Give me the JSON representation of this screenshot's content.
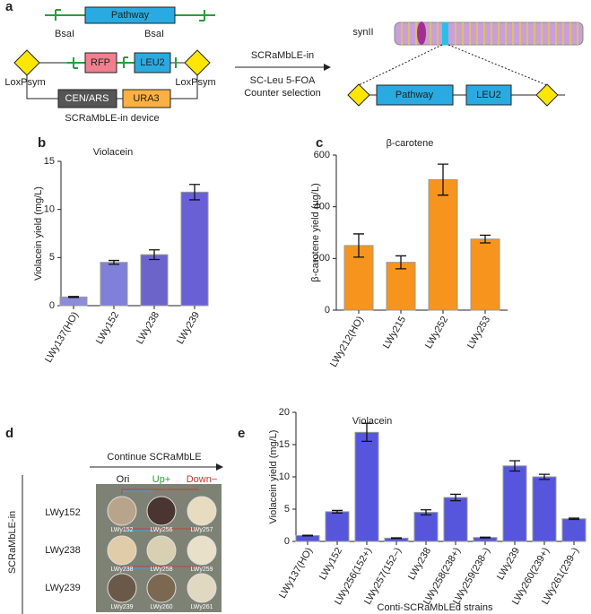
{
  "panel_labels": [
    "a",
    "b",
    "c",
    "d",
    "e"
  ],
  "diagram": {
    "pathway": "Pathway",
    "bsai_left": "BsaI",
    "bsai_right": "BsaI",
    "rfp": "RFP",
    "leu2": "LEU2",
    "loxpsym_left": "LoxPsym",
    "loxpsym_right": "LoxPsym",
    "cen_ars": "CEN/ARS",
    "ura3": "URA3",
    "device": "SCRaMbLE-in device",
    "arrow_top": "SCRaMbLE-in",
    "arrow_bottom_1": "SC-Leu 5-FOA",
    "arrow_bottom_2": "Counter selection",
    "chromosome": "synII",
    "result_pathway": "Pathway",
    "result_leu2": "LEU2"
  },
  "plates": {
    "header": "Continue SCRaMbLE",
    "columns": [
      "Ori",
      "Up+",
      "Down−"
    ],
    "side_label": "SCRaMbLE-in",
    "rows": [
      "LWy152",
      "LWy238",
      "LWy239"
    ],
    "strains": [
      [
        "LWy152",
        "LWy256",
        "LWy257"
      ],
      [
        "LWy238",
        "LWy258",
        "LWy259"
      ],
      [
        "LWy239",
        "LWy260",
        "LWy261"
      ]
    ]
  },
  "chart_data": [
    {
      "type": "bar",
      "title": "Violacein",
      "ylabel": "Violacein yield (mg/L)",
      "categories": [
        "LWy137(HO)",
        "LWy152",
        "LWy238",
        "LWy239"
      ],
      "values": [
        0.9,
        4.5,
        5.3,
        11.8
      ],
      "errors": [
        0.05,
        0.2,
        0.5,
        0.8
      ],
      "colors": [
        "#8c8cdc",
        "#8080d8",
        "#6c64c8",
        "#6a60d6"
      ],
      "ylim": [
        0,
        15
      ],
      "yticks": [
        0,
        5,
        10,
        15
      ]
    },
    {
      "type": "bar",
      "title": "β-carotene",
      "ylabel": "β-carotene yield (µg/L)",
      "categories": [
        "LWy212(HO)",
        "LWy215",
        "LWy252",
        "LWy253"
      ],
      "values": [
        250,
        185,
        505,
        275
      ],
      "errors": [
        45,
        25,
        60,
        15
      ],
      "color": "#f7941d",
      "ylim": [
        0,
        600
      ],
      "yticks": [
        0,
        200,
        400,
        600
      ]
    },
    {
      "type": "bar",
      "title": "Violacein",
      "ylabel": "Violacein yield (mg/L)",
      "xlabel": "Conti-SCRaMbLEd strains",
      "categories": [
        "LWy137(HO)",
        "LWy152",
        "LWy256(152+)",
        "LWy257(152–)",
        "LWy238",
        "LWy258(238+)",
        "LWy259(238–)",
        "LWy239",
        "LWy260(239+)",
        "LWy261(239–)"
      ],
      "values": [
        0.9,
        4.6,
        16.9,
        0.5,
        4.5,
        6.8,
        0.6,
        11.7,
        10.0,
        3.5
      ],
      "errors": [
        0.05,
        0.2,
        1.4,
        0.05,
        0.4,
        0.5,
        0.05,
        0.8,
        0.4,
        0.1
      ],
      "color": "#5656dc",
      "ylim": [
        0,
        20
      ],
      "yticks": [
        0,
        5,
        10,
        15,
        20
      ]
    }
  ]
}
